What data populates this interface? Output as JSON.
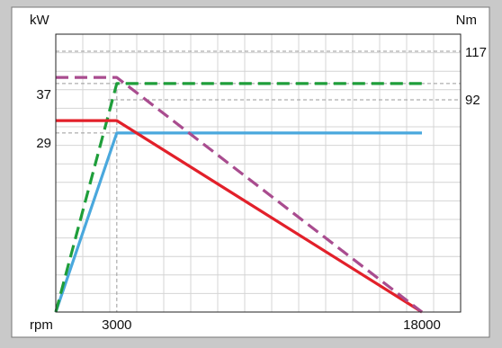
{
  "chart_data": {
    "type": "line",
    "x_axis": {
      "label": "rpm",
      "ticks": [
        3000,
        18000
      ],
      "range": [
        0,
        18000
      ]
    },
    "y_left_axis": {
      "label": "kW",
      "ticks": [
        37,
        29
      ],
      "range": [
        0,
        45
      ]
    },
    "y_right_axis": {
      "label": "Nm",
      "ticks": [
        117,
        92
      ]
    },
    "grid": true,
    "series": [
      {
        "color": "#4aa8dd",
        "dash": "solid",
        "points": [
          [
            0,
            0
          ],
          [
            3000,
            29
          ],
          [
            18000,
            29
          ]
        ]
      },
      {
        "color": "#1e9e3a",
        "dash": "dashed",
        "points": [
          [
            0,
            0
          ],
          [
            3000,
            37
          ],
          [
            18000,
            37
          ]
        ]
      },
      {
        "color": "#e2202a",
        "dash": "solid",
        "points": [
          [
            0,
            31
          ],
          [
            3000,
            31
          ],
          [
            18000,
            0
          ]
        ]
      },
      {
        "color": "#a94c8f",
        "dash": "dashed",
        "points": [
          [
            0,
            38
          ],
          [
            3000,
            38
          ],
          [
            18000,
            0
          ]
        ]
      }
    ]
  }
}
